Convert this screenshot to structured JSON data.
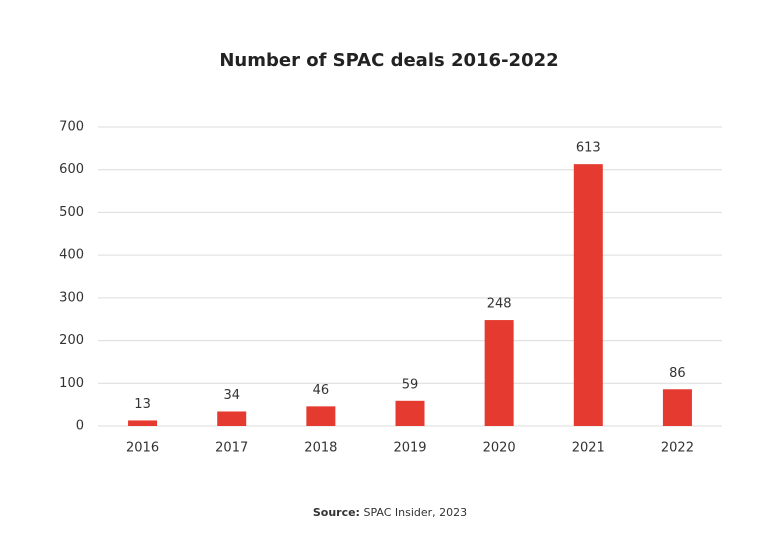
{
  "chart_data": {
    "type": "bar",
    "title": "Number of SPAC deals 2016-2022",
    "categories": [
      "2016",
      "2017",
      "2018",
      "2019",
      "2020",
      "2021",
      "2022"
    ],
    "values": [
      13,
      34,
      46,
      59,
      248,
      613,
      86
    ],
    "color": "#e53a2f",
    "ylim": [
      0,
      700
    ],
    "yticks": [
      0,
      100,
      200,
      300,
      400,
      500,
      600,
      700
    ],
    "grid": true,
    "source_label": "Source:",
    "source": "SPAC Insider, 2023"
  }
}
